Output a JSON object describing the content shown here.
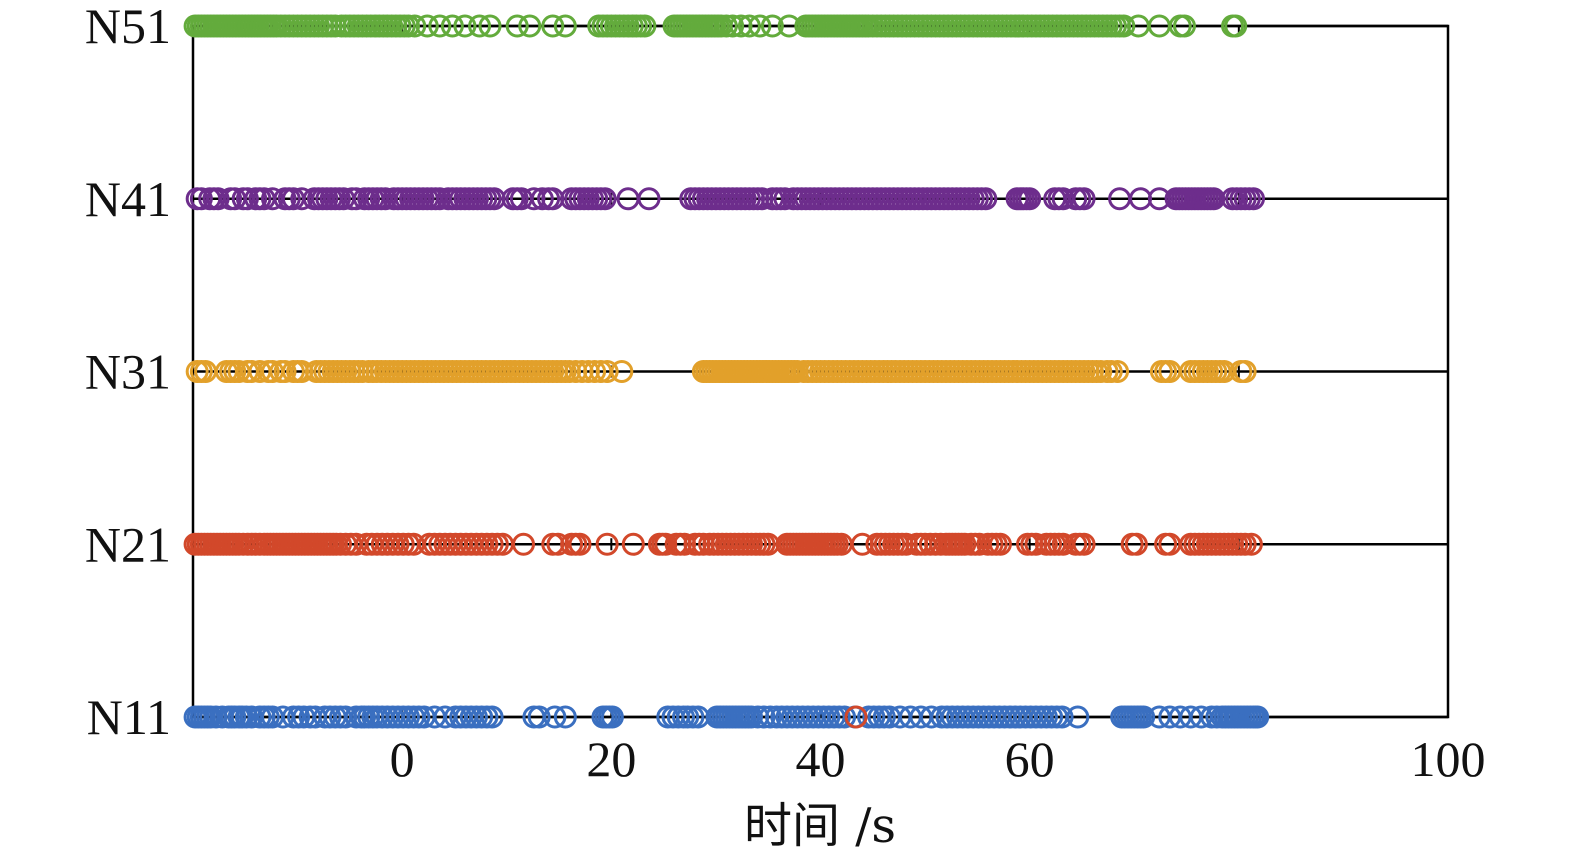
{
  "chart_data": {
    "type": "scatter",
    "title": "",
    "xlabel": "时间 /s",
    "ylabel": "",
    "xlim": [
      -20,
      100
    ],
    "xticks": [
      0,
      20,
      40,
      60,
      80,
      100
    ],
    "x_tick_labels": [
      "0",
      "20",
      "40",
      "60",
      "",
      "100"
    ],
    "categories": [
      "N11",
      "N21",
      "N31",
      "N41",
      "N51"
    ],
    "grid": false,
    "legend": "none",
    "marker": "open-circle",
    "series": [
      {
        "category": "N11",
        "color": "#3a6fc0",
        "x": [
          -19.8,
          -19.5,
          -19.2,
          -18.9,
          -18.6,
          -18.3,
          -17.8,
          -17.2,
          -16.6,
          -16.3,
          -16.0,
          -15.6,
          -15.3,
          -14.9,
          -14.4,
          -13.6,
          -13.2,
          -12.8,
          -12.4,
          -11.4,
          -10.4,
          -9.9,
          -9.4,
          -8.8,
          -8.3,
          -7.4,
          -6.9,
          -6.4,
          -5.9,
          -5.4,
          -4.4,
          -3.9,
          -3.6,
          -3.2,
          -2.8,
          -2.4,
          -1.9,
          -1.4,
          -0.9,
          -0.4,
          0.1,
          0.6,
          1.1,
          1.6,
          2.1,
          3.1,
          4.1,
          5.1,
          5.6,
          6.1,
          6.6,
          7.1,
          7.6,
          8.1,
          8.6,
          12.6,
          13.1,
          14.6,
          15.6,
          19.2,
          19.5,
          19.8,
          20.1,
          25.4,
          25.9,
          26.4,
          26.9,
          27.3,
          27.8,
          28.3,
          30.1,
          30.4,
          30.7,
          31.0,
          31.3,
          31.6,
          31.9,
          32.2,
          32.5,
          32.8,
          33.1,
          33.4,
          34.0,
          34.6,
          35.2,
          35.8,
          36.3,
          36.8,
          37.3,
          37.8,
          38.3,
          38.8,
          39.3,
          39.8,
          40.3,
          40.8,
          41.3,
          41.8,
          42.3,
          43.3,
          44.6,
          45.1,
          45.6,
          46.1,
          46.6,
          47.6,
          48.6,
          49.6,
          50.6,
          51.6,
          52.1,
          52.6,
          53.1,
          53.6,
          54.1,
          54.6,
          55.1,
          55.6,
          56.1,
          56.6,
          57.1,
          57.6,
          58.1,
          58.6,
          59.1,
          59.6,
          60.1,
          60.6,
          61.1,
          61.6,
          62.1,
          62.6,
          63.1,
          64.6,
          68.8,
          69.1,
          69.4,
          69.7,
          70.0,
          70.3,
          70.6,
          70.9,
          72.4,
          73.4,
          74.4,
          75.4,
          76.4,
          77.4,
          77.9,
          78.4,
          78.7,
          79.0,
          79.3,
          79.6,
          79.9,
          80.2,
          80.5,
          80.8,
          81.1,
          81.4,
          81.6,
          81.8
        ]
      },
      {
        "category": "N21",
        "color": "#d2482a",
        "x": [
          -19.8,
          -19.5,
          -19.2,
          -18.9,
          -18.6,
          -18.3,
          -18.0,
          -17.7,
          -17.4,
          -17.1,
          -16.8,
          -16.5,
          -16.2,
          -15.9,
          -15.6,
          -15.2,
          -14.8,
          -14.4,
          -14.0,
          -13.6,
          -13.2,
          -12.9,
          -12.6,
          -12.3,
          -12.0,
          -11.7,
          -11.4,
          -11.1,
          -10.8,
          -10.5,
          -10.2,
          -9.9,
          -9.6,
          -9.3,
          -9.0,
          -8.7,
          -8.4,
          -8.1,
          -7.8,
          -7.5,
          -7.2,
          -6.9,
          -6.6,
          -6.3,
          -5.9,
          -5.4,
          -4.9,
          -4.4,
          -3.4,
          -2.9,
          -2.4,
          -1.9,
          -1.4,
          -0.9,
          -0.4,
          0.1,
          0.6,
          1.1,
          2.6,
          3.1,
          3.6,
          4.1,
          4.6,
          5.1,
          5.6,
          6.1,
          6.6,
          7.1,
          7.6,
          8.1,
          8.6,
          9.1,
          9.6,
          11.6,
          14.4,
          14.9,
          16.2,
          16.6,
          17.0,
          19.6,
          22.1,
          24.6,
          24.9,
          25.2,
          26.2,
          26.6,
          27.0,
          28.0,
          28.4,
          28.8,
          29.4,
          29.8,
          30.2,
          30.6,
          31.0,
          31.4,
          31.8,
          32.2,
          32.6,
          33.0,
          33.4,
          33.8,
          34.2,
          34.6,
          35.0,
          36.8,
          37.1,
          37.4,
          37.7,
          38.0,
          38.3,
          38.6,
          38.9,
          39.2,
          39.5,
          39.8,
          40.1,
          40.4,
          40.7,
          41.0,
          41.3,
          41.6,
          42.0,
          44.0,
          45.4,
          45.8,
          46.2,
          46.6,
          47.0,
          47.4,
          47.8,
          48.2,
          49.2,
          49.6,
          50.0,
          50.5,
          51.0,
          51.5,
          52.0,
          52.3,
          52.6,
          52.9,
          53.2,
          53.5,
          53.8,
          54.4,
          54.8,
          55.2,
          56.0,
          56.4,
          56.8,
          57.2,
          59.8,
          60.2,
          60.6,
          61.6,
          62.0,
          62.4,
          62.8,
          63.2,
          64.4,
          64.8,
          65.2,
          69.8,
          70.2,
          73.0,
          73.4,
          75.4,
          75.8,
          76.2,
          76.6,
          77.0,
          77.4,
          77.8,
          78.2,
          78.6,
          79.0,
          79.4,
          79.8,
          80.2,
          80.6,
          81.2
        ]
      },
      {
        "category": "N31",
        "color": "#e2a02a",
        "x": [
          -19.6,
          -19.2,
          -18.8,
          -16.8,
          -16.4,
          -16.0,
          -15.6,
          -14.8,
          -14.4,
          -13.6,
          -12.8,
          -12.4,
          -11.6,
          -11.2,
          -10.4,
          -10.0,
          -9.6,
          -8.2,
          -7.8,
          -7.4,
          -7.0,
          -6.6,
          -6.2,
          -5.8,
          -5.4,
          -5.0,
          -4.6,
          -4.2,
          -3.8,
          -3.2,
          -2.8,
          -2.4,
          -2.0,
          -1.6,
          -1.2,
          -0.8,
          -0.4,
          0.0,
          0.4,
          0.8,
          1.2,
          1.6,
          2.0,
          2.4,
          2.8,
          3.2,
          3.6,
          4.0,
          4.4,
          4.8,
          5.2,
          5.6,
          6.0,
          6.4,
          6.8,
          7.2,
          7.6,
          8.0,
          8.4,
          8.8,
          9.2,
          9.6,
          10.0,
          10.4,
          10.8,
          11.2,
          11.6,
          12.0,
          12.4,
          12.8,
          13.2,
          13.6,
          14.0,
          14.4,
          14.8,
          15.2,
          15.6,
          16.0,
          16.6,
          17.2,
          17.8,
          18.4,
          19.0,
          19.6,
          21.0,
          28.8,
          29.1,
          29.4,
          29.7,
          30.0,
          30.3,
          30.6,
          30.9,
          31.2,
          31.5,
          31.8,
          32.1,
          32.4,
          32.7,
          33.0,
          33.3,
          33.6,
          33.9,
          34.2,
          34.5,
          34.8,
          35.1,
          35.4,
          35.7,
          36.0,
          36.3,
          36.6,
          36.9,
          37.2,
          37.5,
          37.8,
          38.4,
          38.8,
          39.2,
          39.6,
          40.0,
          40.4,
          40.8,
          41.2,
          41.6,
          42.0,
          42.4,
          42.8,
          43.2,
          43.6,
          44.0,
          44.4,
          44.8,
          45.2,
          45.6,
          46.0,
          46.4,
          46.8,
          47.2,
          47.6,
          48.0,
          48.4,
          48.8,
          49.2,
          49.6,
          50.0,
          50.4,
          50.8,
          51.2,
          51.6,
          52.0,
          52.4,
          52.8,
          53.2,
          53.6,
          54.0,
          54.4,
          54.8,
          55.2,
          55.6,
          56.0,
          56.4,
          56.8,
          57.2,
          57.6,
          58.0,
          58.4,
          58.8,
          59.2,
          59.6,
          60.0,
          60.4,
          60.8,
          61.2,
          61.6,
          62.0,
          62.4,
          62.8,
          63.2,
          63.6,
          64.0,
          64.4,
          64.8,
          65.2,
          65.6,
          66.0,
          66.4,
          66.8,
          67.4,
          67.8,
          68.4,
          72.6,
          73.0,
          73.4,
          75.4,
          75.8,
          76.2,
          76.6,
          77.0,
          77.4,
          77.8,
          78.2,
          78.6,
          80.2,
          80.6
        ]
      },
      {
        "category": "N41",
        "color": "#6d2d8c",
        "x": [
          -19.6,
          -19.2,
          -18.4,
          -18.0,
          -17.6,
          -16.4,
          -16.0,
          -15.2,
          -14.8,
          -14.0,
          -13.6,
          -13.2,
          -12.4,
          -11.2,
          -10.8,
          -10.4,
          -9.6,
          -8.4,
          -8.0,
          -7.6,
          -7.2,
          -6.8,
          -6.4,
          -6.0,
          -5.6,
          -4.8,
          -4.4,
          -3.6,
          -3.2,
          -2.8,
          -2.4,
          -2.0,
          -1.6,
          -0.8,
          -0.4,
          0.0,
          0.4,
          0.8,
          1.2,
          1.6,
          2.0,
          2.4,
          2.8,
          3.2,
          3.6,
          4.4,
          4.8,
          5.2,
          5.6,
          6.0,
          6.4,
          6.8,
          7.2,
          7.6,
          8.0,
          8.4,
          8.8,
          10.6,
          11.0,
          11.4,
          12.6,
          13.4,
          14.0,
          14.4,
          16.2,
          16.6,
          17.0,
          17.4,
          17.8,
          18.2,
          18.6,
          19.0,
          19.4,
          21.6,
          23.6,
          27.6,
          28.0,
          28.4,
          28.8,
          29.2,
          29.6,
          30.0,
          30.4,
          30.8,
          31.2,
          31.6,
          32.0,
          32.4,
          32.8,
          33.2,
          33.6,
          34.0,
          34.4,
          35.4,
          35.8,
          36.2,
          36.6,
          37.4,
          37.8,
          38.2,
          38.6,
          39.0,
          39.4,
          39.8,
          40.2,
          40.6,
          41.0,
          41.4,
          41.8,
          42.2,
          42.6,
          43.0,
          43.4,
          43.8,
          44.2,
          44.6,
          45.0,
          45.4,
          45.8,
          46.2,
          46.6,
          47.0,
          47.4,
          47.8,
          48.2,
          48.6,
          49.0,
          49.4,
          49.8,
          50.2,
          50.6,
          51.0,
          51.4,
          51.8,
          52.2,
          52.6,
          53.0,
          53.4,
          53.8,
          54.2,
          54.6,
          55.0,
          55.4,
          55.8,
          58.8,
          59.1,
          59.4,
          59.7,
          60.0,
          62.4,
          62.8,
          63.2,
          64.4,
          64.8,
          65.2,
          68.6,
          70.6,
          72.4,
          74.0,
          74.3,
          74.6,
          74.9,
          75.2,
          75.5,
          75.8,
          76.1,
          76.4,
          76.7,
          77.0,
          77.3,
          77.6,
          79.4,
          79.8,
          80.2,
          80.6,
          81.0,
          81.4
        ]
      },
      {
        "category": "N51",
        "color": "#63ab3c",
        "x": [
          -19.8,
          -19.5,
          -19.2,
          -18.9,
          -18.6,
          -18.3,
          -18.0,
          -17.7,
          -17.4,
          -17.1,
          -16.8,
          -16.5,
          -16.2,
          -15.9,
          -15.6,
          -15.3,
          -15.0,
          -14.7,
          -14.4,
          -14.1,
          -13.8,
          -13.5,
          -13.2,
          -12.9,
          -12.6,
          -12.3,
          -12.0,
          -11.6,
          -11.2,
          -10.8,
          -10.4,
          -10.0,
          -9.6,
          -9.2,
          -8.8,
          -8.4,
          -8.0,
          -7.6,
          -7.2,
          -6.8,
          -6.4,
          -5.8,
          -5.4,
          -5.0,
          -4.6,
          -4.2,
          -3.8,
          -3.4,
          -3.0,
          -2.6,
          -2.2,
          -1.8,
          -1.4,
          -1.0,
          -0.6,
          -0.2,
          0.2,
          0.6,
          1.2,
          2.4,
          3.6,
          4.8,
          6.0,
          7.4,
          8.4,
          11.0,
          12.2,
          14.4,
          15.6,
          18.8,
          19.2,
          19.6,
          20.0,
          20.4,
          20.8,
          21.2,
          21.6,
          22.0,
          22.4,
          22.8,
          23.2,
          26.0,
          26.3,
          26.6,
          26.9,
          27.2,
          27.5,
          27.8,
          28.1,
          28.4,
          28.7,
          29.0,
          29.3,
          29.6,
          29.9,
          30.2,
          30.5,
          31.0,
          31.6,
          32.4,
          33.2,
          34.2,
          35.4,
          37.0,
          38.6,
          38.9,
          39.2,
          39.5,
          39.8,
          40.1,
          40.4,
          40.7,
          41.0,
          41.3,
          41.6,
          41.9,
          42.2,
          42.5,
          42.8,
          43.1,
          43.4,
          43.7,
          44.0,
          44.3,
          44.6,
          45.0,
          45.4,
          45.8,
          46.2,
          46.6,
          47.0,
          47.4,
          47.8,
          48.2,
          48.6,
          49.0,
          49.4,
          49.8,
          50.2,
          50.6,
          51.0,
          51.4,
          51.8,
          52.2,
          52.6,
          53.0,
          53.4,
          53.8,
          54.2,
          54.6,
          55.0,
          55.4,
          55.8,
          56.2,
          56.6,
          57.0,
          57.4,
          57.8,
          58.2,
          58.6,
          59.0,
          59.4,
          59.8,
          60.2,
          60.6,
          61.0,
          61.4,
          61.8,
          62.2,
          62.6,
          63.0,
          63.4,
          63.8,
          64.2,
          64.6,
          65.0,
          65.4,
          65.8,
          66.2,
          66.6,
          67.0,
          67.4,
          67.8,
          68.2,
          68.6,
          69.0,
          70.4,
          72.4,
          74.4,
          74.8,
          79.4,
          79.7
        ]
      }
    ],
    "extra_points": [
      {
        "category": "N11",
        "x": 43.4,
        "color": "#d2482a"
      }
    ]
  }
}
